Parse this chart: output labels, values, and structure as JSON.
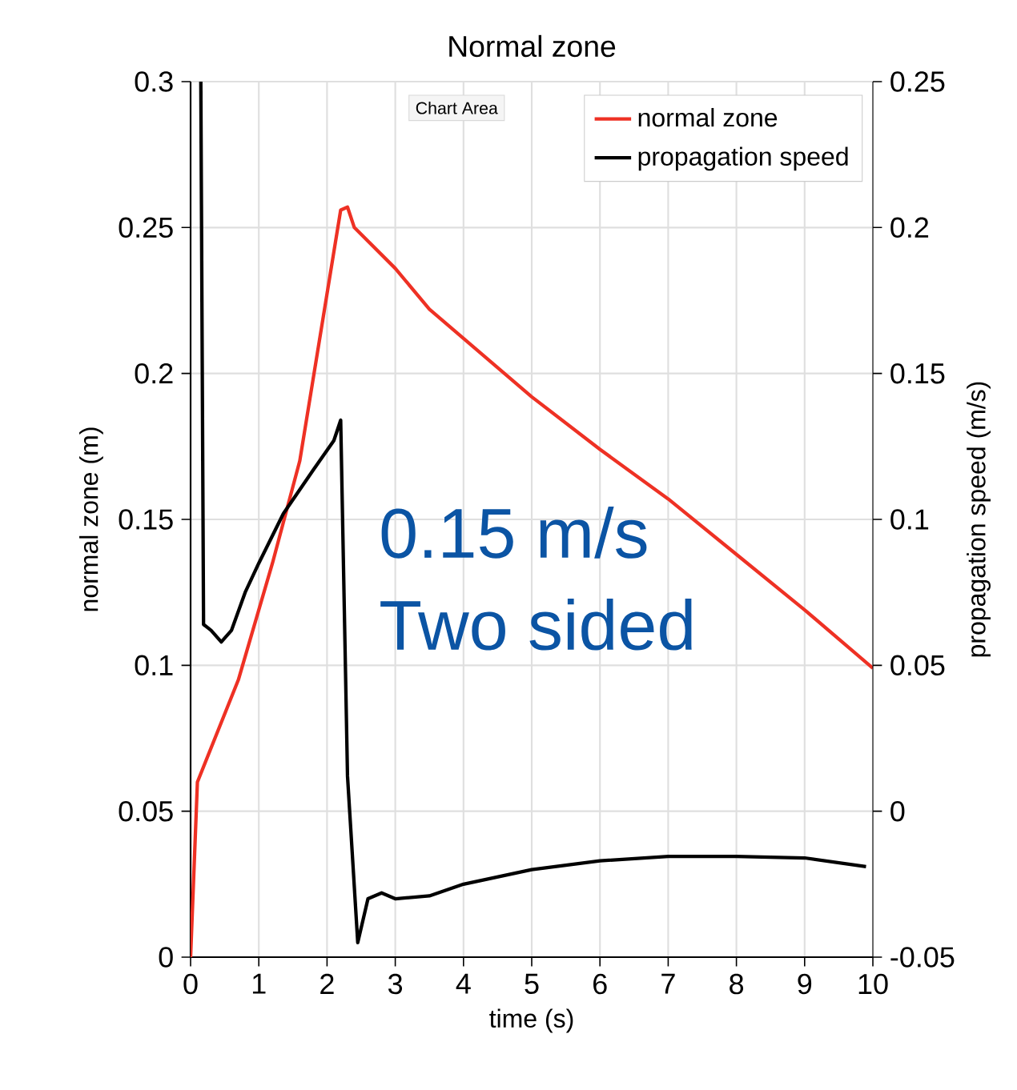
{
  "chart_data": {
    "type": "line",
    "title": "Normal zone",
    "xlabel": "time (s)",
    "ylabel": "normal zone (m)",
    "y2label": "propagation speed (m/s)",
    "xlim": [
      0,
      10
    ],
    "xticks": [
      0,
      1,
      2,
      3,
      4,
      5,
      6,
      7,
      8,
      9,
      10
    ],
    "ylim": [
      0,
      0.3
    ],
    "yticks": [
      0,
      0.05,
      0.1,
      0.15,
      0.2,
      0.25,
      0.3
    ],
    "y2lim": [
      -0.05,
      0.25
    ],
    "y2ticks": [
      -0.05,
      0,
      0.05,
      0.1,
      0.15,
      0.2,
      0.25
    ],
    "grid": true,
    "legend": "top right",
    "marker": "none",
    "line_style": "solid",
    "annotations": [
      "0.15 m/s",
      "Two sided",
      "Chart Area"
    ],
    "series": [
      {
        "name": "normal zone",
        "color": "#ee3124",
        "axis": "y",
        "x": [
          0,
          0.1,
          0.7,
          1.2,
          1.6,
          2.2,
          2.3,
          2.4,
          3,
          3.5,
          4.25,
          5,
          6,
          7,
          8,
          9,
          10
        ],
        "values": [
          0,
          0.06,
          0.095,
          0.135,
          0.17,
          0.256,
          0.257,
          0.25,
          0.236,
          0.222,
          0.207,
          0.192,
          0.174,
          0.157,
          0.138,
          0.119,
          0.099
        ]
      },
      {
        "name": "propagation speed",
        "color": "#000000",
        "axis": "y2",
        "x": [
          0.15,
          0.19,
          0.3,
          0.45,
          0.6,
          0.8,
          1.0,
          1.36,
          1.8,
          2.1,
          2.2,
          2.3,
          2.45,
          2.6,
          2.8,
          3,
          3.5,
          4,
          5,
          6,
          7,
          8,
          9,
          9.9
        ],
        "values": [
          0.25,
          0.064,
          0.062,
          0.058,
          0.062,
          0.075,
          0.085,
          0.102,
          0.117,
          0.127,
          0.134,
          0.012,
          -0.045,
          -0.03,
          -0.028,
          -0.03,
          -0.029,
          -0.025,
          -0.02,
          -0.017,
          -0.0155,
          -0.0155,
          -0.016,
          -0.019
        ]
      }
    ]
  }
}
